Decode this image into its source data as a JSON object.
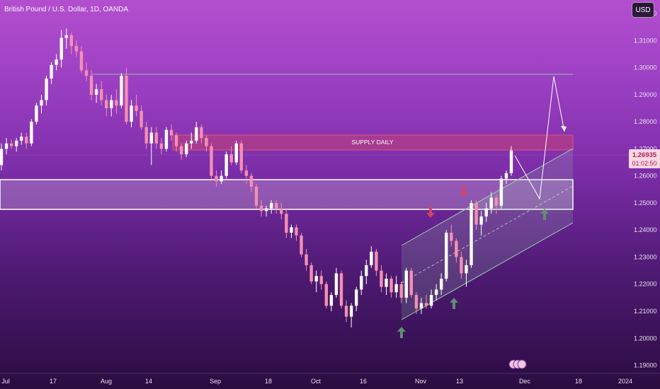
{
  "header": {
    "symbol_title": "British Pound / U.S. Dollar, 1D, OANDA",
    "currency_button": "USD"
  },
  "colors": {
    "up_candle": "#ffffff",
    "down_candle": "#f48fb1",
    "resistance_line": "#8fbfa5",
    "supply_zone": "#d1456a",
    "channel": "#9ccfb0",
    "arrow_up": "#5e8f74",
    "arrow_down": "#d1456a"
  },
  "chart_data": {
    "type": "candlestick",
    "title": "",
    "xlabel": "",
    "ylabel": "",
    "ylim": [
      1.187,
      1.325
    ],
    "y_ticks": [
      "1.32000",
      "1.31000",
      "1.30000",
      "1.29000",
      "1.28000",
      "1.27000",
      "1.26000",
      "1.25000",
      "1.24000",
      "1.23000",
      "1.22000",
      "1.21000",
      "1.20000",
      "1.19000"
    ],
    "x_ticks": [
      "Jul",
      "17",
      "Aug",
      "14",
      "Sep",
      "18",
      "Oct",
      "16",
      "Nov",
      "13",
      "Dec",
      "18",
      "2024"
    ],
    "current_price": "1.26935",
    "countdown": "01:02:50",
    "supply_zone_label": "SUPPLY DAILY",
    "candles": [
      [
        1.264,
        1.272,
        1.262,
        1.27
      ],
      [
        1.27,
        1.274,
        1.268,
        1.272
      ],
      [
        1.272,
        1.2735,
        1.27,
        1.271
      ],
      [
        1.271,
        1.274,
        1.269,
        1.273
      ],
      [
        1.273,
        1.276,
        1.2715,
        1.2745
      ],
      [
        1.2745,
        1.276,
        1.27,
        1.272
      ],
      [
        1.272,
        1.281,
        1.271,
        1.28
      ],
      [
        1.28,
        1.287,
        1.279,
        1.286
      ],
      [
        1.286,
        1.29,
        1.283,
        1.288
      ],
      [
        1.288,
        1.297,
        1.286,
        1.296
      ],
      [
        1.296,
        1.302,
        1.294,
        1.301
      ],
      [
        1.301,
        1.305,
        1.299,
        1.303
      ],
      [
        1.303,
        1.314,
        1.3,
        1.311
      ],
      [
        1.311,
        1.3145,
        1.307,
        1.312
      ],
      [
        1.312,
        1.313,
        1.305,
        1.308
      ],
      [
        1.308,
        1.31,
        1.304,
        1.306
      ],
      [
        1.306,
        1.308,
        1.298,
        1.299
      ],
      [
        1.299,
        1.302,
        1.295,
        1.297
      ],
      [
        1.297,
        1.299,
        1.288,
        1.29
      ],
      [
        1.29,
        1.294,
        1.287,
        1.292
      ],
      [
        1.292,
        1.295,
        1.286,
        1.288
      ],
      [
        1.288,
        1.29,
        1.282,
        1.285
      ],
      [
        1.285,
        1.29,
        1.282,
        1.288
      ],
      [
        1.288,
        1.292,
        1.283,
        1.286
      ],
      [
        1.286,
        1.298,
        1.285,
        1.297
      ],
      [
        1.297,
        1.3,
        1.279,
        1.28
      ],
      [
        1.28,
        1.288,
        1.278,
        1.286
      ],
      [
        1.286,
        1.29,
        1.282,
        1.284
      ],
      [
        1.284,
        1.286,
        1.277,
        1.278
      ],
      [
        1.278,
        1.28,
        1.27,
        1.272
      ],
      [
        1.272,
        1.278,
        1.264,
        1.276
      ],
      [
        1.276,
        1.278,
        1.27,
        1.272
      ],
      [
        1.272,
        1.274,
        1.268,
        1.27
      ],
      [
        1.27,
        1.278,
        1.269,
        1.277
      ],
      [
        1.277,
        1.279,
        1.273,
        1.275
      ],
      [
        1.275,
        1.276,
        1.269,
        1.271
      ],
      [
        1.271,
        1.272,
        1.266,
        1.268
      ],
      [
        1.268,
        1.273,
        1.267,
        1.272
      ],
      [
        1.272,
        1.276,
        1.27,
        1.273
      ],
      [
        1.273,
        1.28,
        1.272,
        1.278
      ],
      [
        1.278,
        1.279,
        1.272,
        1.274
      ],
      [
        1.274,
        1.275,
        1.269,
        1.271
      ],
      [
        1.271,
        1.272,
        1.259,
        1.26
      ],
      [
        1.26,
        1.262,
        1.256,
        1.258
      ],
      [
        1.258,
        1.262,
        1.257,
        1.26
      ],
      [
        1.26,
        1.269,
        1.259,
        1.268
      ],
      [
        1.268,
        1.271,
        1.264,
        1.265
      ],
      [
        1.265,
        1.273,
        1.264,
        1.272
      ],
      [
        1.272,
        1.273,
        1.261,
        1.262
      ],
      [
        1.262,
        1.264,
        1.257,
        1.26
      ],
      [
        1.26,
        1.261,
        1.254,
        1.256
      ],
      [
        1.256,
        1.257,
        1.248,
        1.249
      ],
      [
        1.249,
        1.251,
        1.245,
        1.247
      ],
      [
        1.247,
        1.249,
        1.245,
        1.248
      ],
      [
        1.248,
        1.251,
        1.246,
        1.25
      ],
      [
        1.25,
        1.251,
        1.246,
        1.248
      ],
      [
        1.248,
        1.25,
        1.244,
        1.246
      ],
      [
        1.246,
        1.248,
        1.237,
        1.239
      ],
      [
        1.239,
        1.242,
        1.237,
        1.241
      ],
      [
        1.241,
        1.242,
        1.236,
        1.238
      ],
      [
        1.238,
        1.239,
        1.23,
        1.231
      ],
      [
        1.231,
        1.233,
        1.225,
        1.227
      ],
      [
        1.227,
        1.228,
        1.22,
        1.221
      ],
      [
        1.221,
        1.225,
        1.217,
        1.223
      ],
      [
        1.223,
        1.225,
        1.218,
        1.22
      ],
      [
        1.22,
        1.221,
        1.211,
        1.212
      ],
      [
        1.212,
        1.217,
        1.21,
        1.216
      ],
      [
        1.216,
        1.226,
        1.215,
        1.224
      ],
      [
        1.224,
        1.225,
        1.211,
        1.212
      ],
      [
        1.212,
        1.214,
        1.206,
        1.208
      ],
      [
        1.208,
        1.213,
        1.204,
        1.212
      ],
      [
        1.212,
        1.219,
        1.21,
        1.218
      ],
      [
        1.218,
        1.225,
        1.216,
        1.223
      ],
      [
        1.223,
        1.229,
        1.22,
        1.227
      ],
      [
        1.227,
        1.234,
        1.226,
        1.232
      ],
      [
        1.232,
        1.233,
        1.223,
        1.225
      ],
      [
        1.225,
        1.227,
        1.217,
        1.219
      ],
      [
        1.219,
        1.224,
        1.216,
        1.222
      ],
      [
        1.222,
        1.223,
        1.215,
        1.217
      ],
      [
        1.217,
        1.223,
        1.215,
        1.22
      ],
      [
        1.22,
        1.221,
        1.213,
        1.215
      ],
      [
        1.215,
        1.226,
        1.213,
        1.225
      ],
      [
        1.225,
        1.226,
        1.215,
        1.216
      ],
      [
        1.216,
        1.217,
        1.209,
        1.211
      ],
      [
        1.211,
        1.215,
        1.209,
        1.213
      ],
      [
        1.213,
        1.216,
        1.211,
        1.212
      ],
      [
        1.212,
        1.218,
        1.211,
        1.216
      ],
      [
        1.216,
        1.22,
        1.214,
        1.218
      ],
      [
        1.218,
        1.224,
        1.216,
        1.222
      ],
      [
        1.222,
        1.24,
        1.221,
        1.239
      ],
      [
        1.239,
        1.242,
        1.234,
        1.236
      ],
      [
        1.236,
        1.237,
        1.228,
        1.23
      ],
      [
        1.23,
        1.232,
        1.222,
        1.224
      ],
      [
        1.224,
        1.229,
        1.219,
        1.227
      ],
      [
        1.227,
        1.251,
        1.226,
        1.25
      ],
      [
        1.25,
        1.251,
        1.24,
        1.242
      ],
      [
        1.242,
        1.247,
        1.238,
        1.245
      ],
      [
        1.245,
        1.25,
        1.243,
        1.248
      ],
      [
        1.248,
        1.254,
        1.246,
        1.252
      ],
      [
        1.252,
        1.253,
        1.246,
        1.249
      ],
      [
        1.249,
        1.26,
        1.248,
        1.259
      ],
      [
        1.259,
        1.262,
        1.257,
        1.261
      ],
      [
        1.261,
        1.271,
        1.26,
        1.2694
      ]
    ]
  }
}
